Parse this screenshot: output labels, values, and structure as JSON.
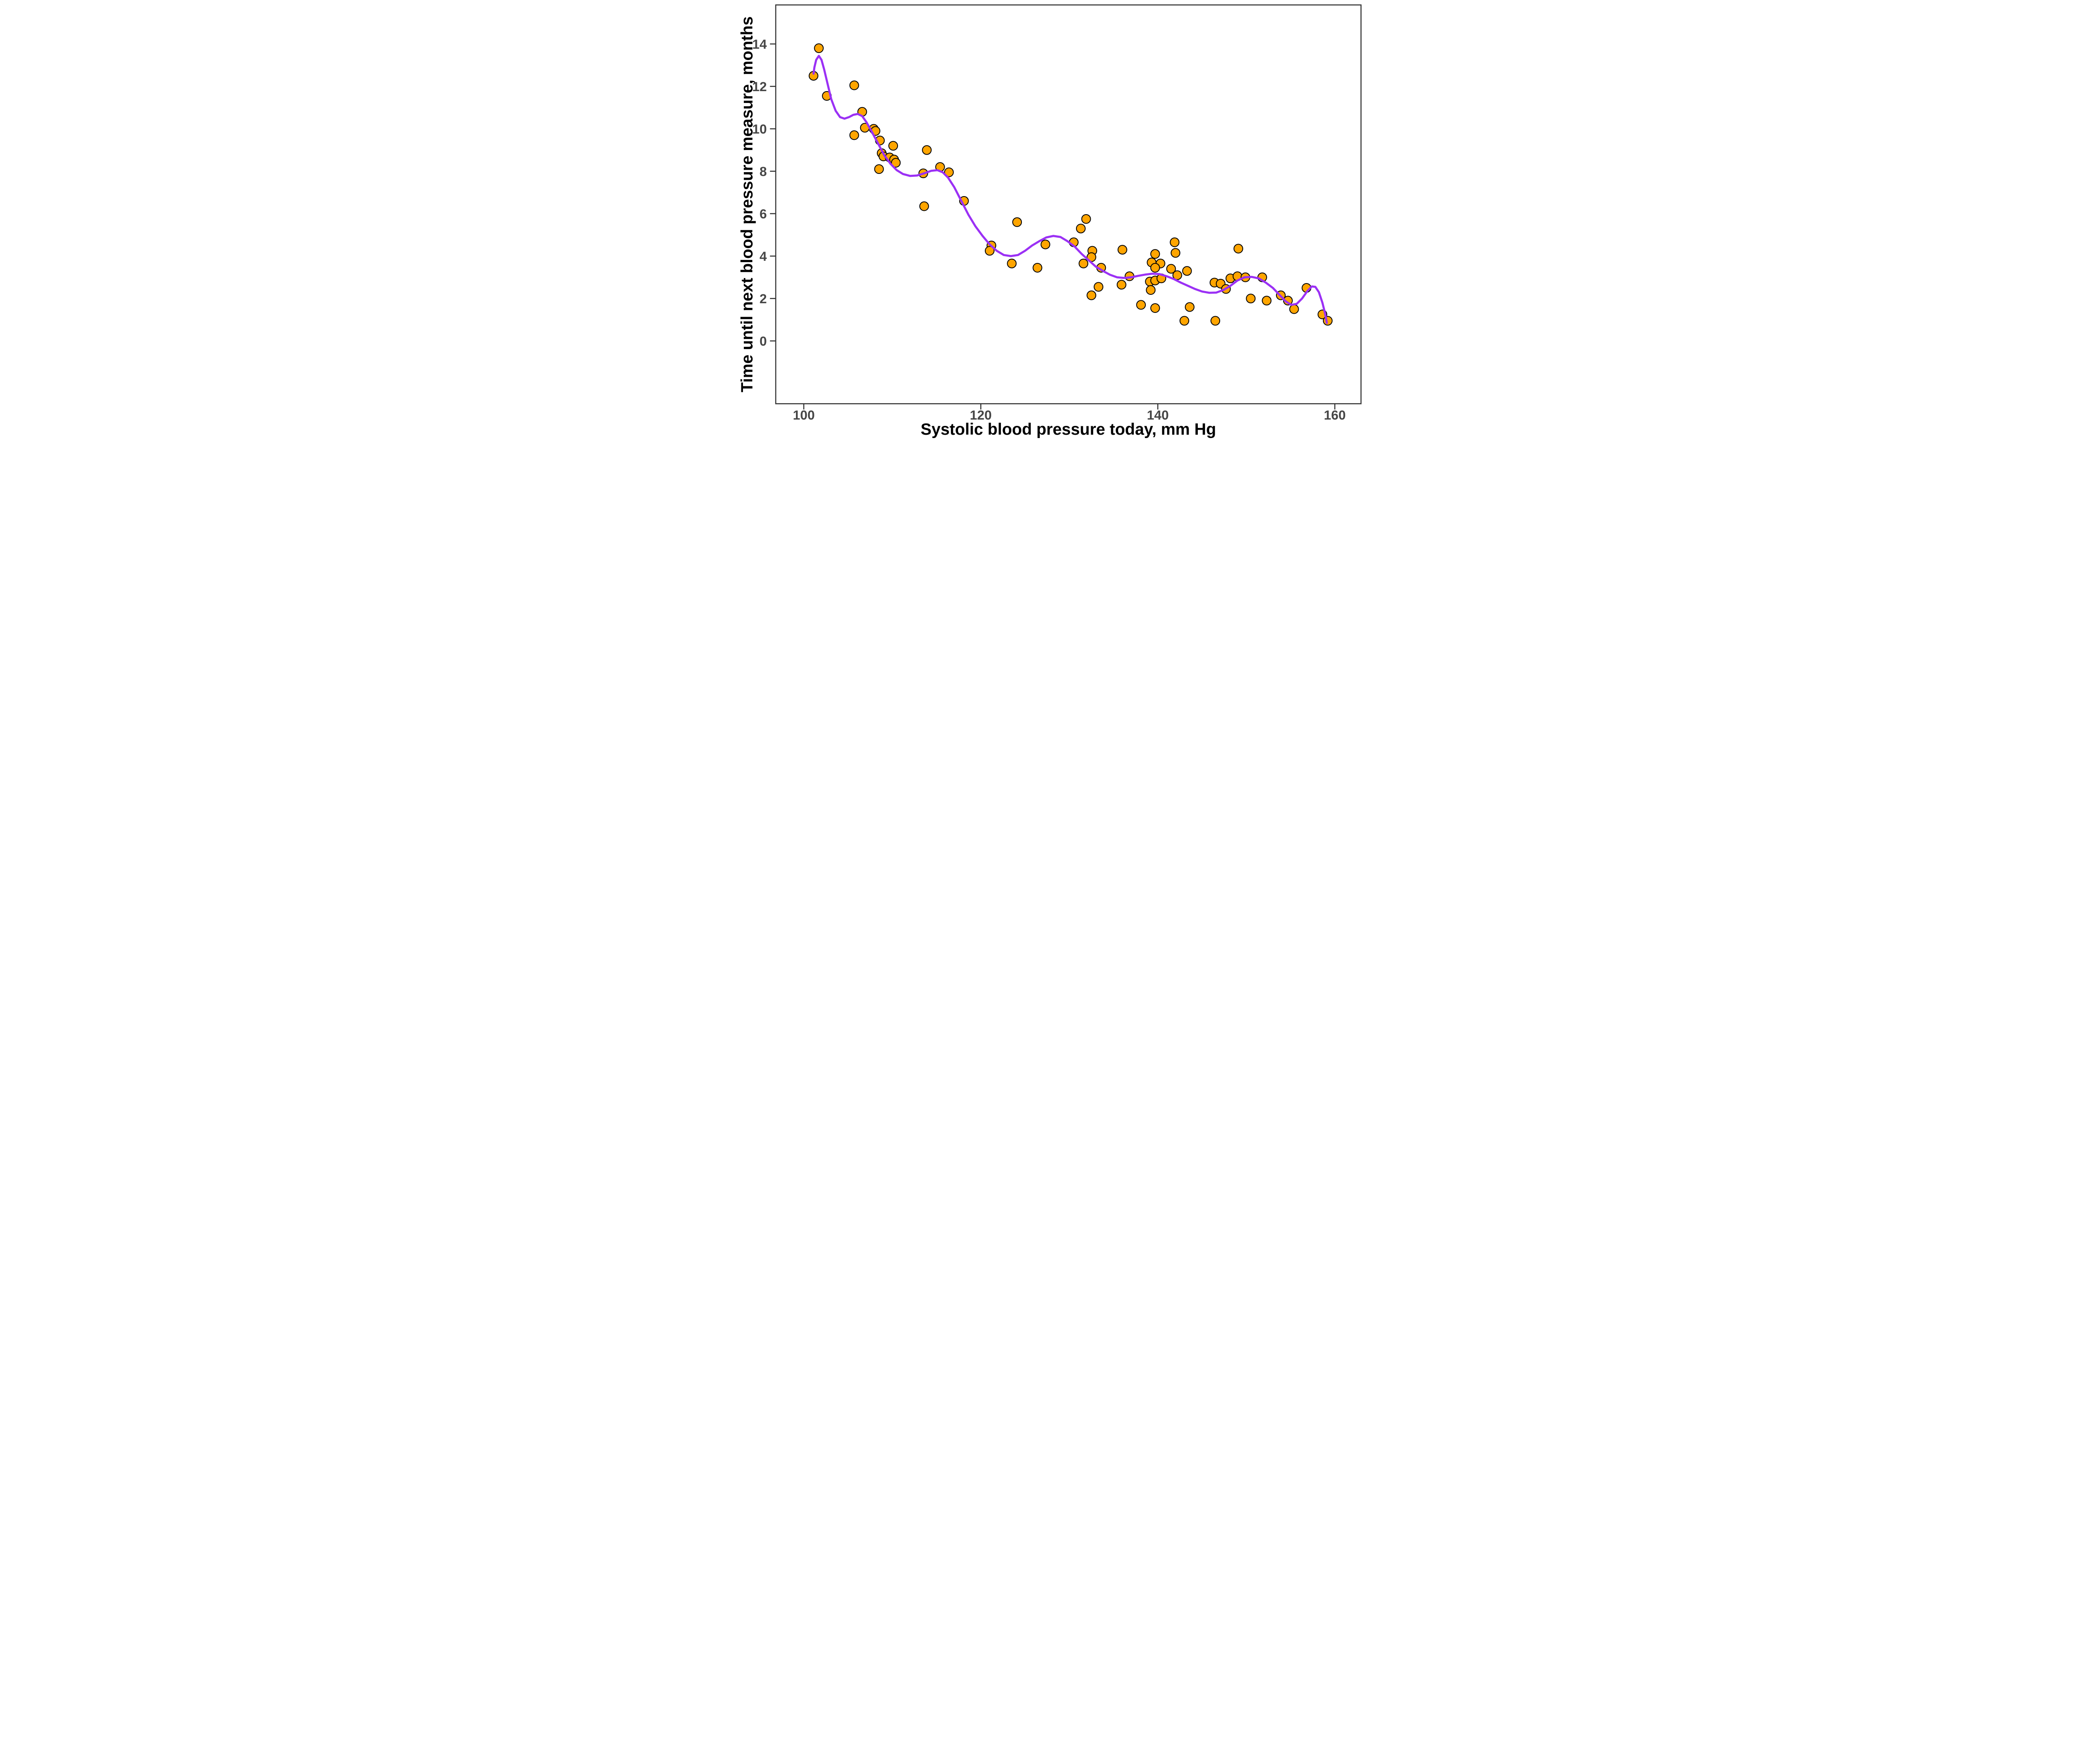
{
  "figure": {
    "x_axis_title": "Systolic blood pressure today, mm Hg",
    "y_axis_title": "Time until next blood pressure measure, months"
  },
  "chart_data": {
    "type": "scatter",
    "subtype": "scatter-with-loess-smooth",
    "title": "",
    "xlabel": "Systolic blood pressure today, mm Hg",
    "ylabel": "Time until next blood pressure measure, months",
    "xlim": [
      96.83,
      162.96
    ],
    "ylim": [
      -2.96,
      15.84
    ],
    "x_ticks": [
      100,
      120,
      140,
      160
    ],
    "x_tick_labels": [
      "100",
      "120",
      "140",
      "160"
    ],
    "y_ticks": [
      0,
      2,
      4,
      6,
      8,
      10,
      12,
      14
    ],
    "y_tick_labels": [
      "0",
      "2",
      "4",
      "6",
      "8",
      "10",
      "12",
      "14"
    ],
    "grid": false,
    "legend": "none",
    "colors": {
      "point_fill": "#FFA500",
      "point_stroke": "#000000",
      "smooth_line": "#9B30F5",
      "axis_line": "#333333",
      "tick_label": "#464646",
      "axis_title": "#000000",
      "background": "#FFFFFF"
    },
    "points": [
      [
        101.7,
        13.8
      ],
      [
        101.1,
        12.5
      ],
      [
        102.6,
        11.55
      ],
      [
        105.7,
        12.05
      ],
      [
        105.7,
        9.7
      ],
      [
        106.6,
        10.8
      ],
      [
        106.9,
        10.05
      ],
      [
        107.9,
        10.0
      ],
      [
        108.1,
        9.9
      ],
      [
        108.6,
        9.45
      ],
      [
        110.1,
        9.2
      ],
      [
        108.8,
        8.85
      ],
      [
        109.0,
        8.7
      ],
      [
        109.7,
        8.65
      ],
      [
        110.2,
        8.55
      ],
      [
        110.4,
        8.4
      ],
      [
        108.5,
        8.1
      ],
      [
        113.9,
        9.0
      ],
      [
        113.5,
        7.9
      ],
      [
        115.4,
        8.2
      ],
      [
        116.4,
        7.95
      ],
      [
        118.1,
        6.6
      ],
      [
        113.6,
        6.35
      ],
      [
        124.1,
        5.6
      ],
      [
        121.2,
        4.5
      ],
      [
        121.0,
        4.25
      ],
      [
        123.5,
        3.65
      ],
      [
        126.4,
        3.45
      ],
      [
        127.3,
        4.55
      ],
      [
        130.5,
        4.65
      ],
      [
        131.9,
        5.75
      ],
      [
        131.3,
        5.3
      ],
      [
        132.6,
        4.25
      ],
      [
        132.5,
        3.95
      ],
      [
        131.6,
        3.65
      ],
      [
        133.6,
        3.45
      ],
      [
        133.3,
        2.55
      ],
      [
        132.5,
        2.15
      ],
      [
        135.9,
        2.65
      ],
      [
        136.8,
        3.05
      ],
      [
        136.0,
        4.3
      ],
      [
        141.9,
        4.65
      ],
      [
        142.0,
        4.15
      ],
      [
        139.7,
        4.1
      ],
      [
        139.3,
        3.7
      ],
      [
        140.3,
        3.65
      ],
      [
        139.7,
        3.45
      ],
      [
        139.1,
        2.8
      ],
      [
        139.7,
        2.85
      ],
      [
        140.4,
        2.95
      ],
      [
        139.2,
        2.4
      ],
      [
        141.5,
        3.4
      ],
      [
        142.2,
        3.1
      ],
      [
        143.3,
        3.3
      ],
      [
        138.1,
        1.7
      ],
      [
        139.7,
        1.55
      ],
      [
        143.6,
        1.6
      ],
      [
        143.0,
        0.95
      ],
      [
        146.5,
        0.95
      ],
      [
        146.4,
        2.75
      ],
      [
        147.1,
        2.7
      ],
      [
        147.7,
        2.45
      ],
      [
        148.2,
        2.95
      ],
      [
        149.0,
        3.05
      ],
      [
        149.9,
        3.0
      ],
      [
        151.8,
        3.0
      ],
      [
        150.5,
        2.0
      ],
      [
        152.3,
        1.9
      ],
      [
        149.1,
        4.35
      ],
      [
        153.9,
        2.15
      ],
      [
        154.7,
        1.9
      ],
      [
        155.4,
        1.5
      ],
      [
        156.8,
        2.5
      ],
      [
        158.6,
        1.25
      ],
      [
        159.2,
        0.95
      ]
    ],
    "smooth_line": [
      [
        101.1,
        12.6
      ],
      [
        101.2,
        12.9
      ],
      [
        101.4,
        13.25
      ],
      [
        101.7,
        13.44
      ],
      [
        102.0,
        13.25
      ],
      [
        102.3,
        12.8
      ],
      [
        102.7,
        12.1
      ],
      [
        103.1,
        11.4
      ],
      [
        103.6,
        10.85
      ],
      [
        104.1,
        10.55
      ],
      [
        104.6,
        10.48
      ],
      [
        105.1,
        10.55
      ],
      [
        105.6,
        10.66
      ],
      [
        106.1,
        10.7
      ],
      [
        106.6,
        10.6
      ],
      [
        107.1,
        10.3
      ],
      [
        107.7,
        9.85
      ],
      [
        108.4,
        9.3
      ],
      [
        109.1,
        8.75
      ],
      [
        109.8,
        8.35
      ],
      [
        110.5,
        8.05
      ],
      [
        111.2,
        7.87
      ],
      [
        112.0,
        7.78
      ],
      [
        112.8,
        7.8
      ],
      [
        113.6,
        7.9
      ],
      [
        114.4,
        8.02
      ],
      [
        115.1,
        8.05
      ],
      [
        115.7,
        7.95
      ],
      [
        116.3,
        7.7
      ],
      [
        117.0,
        7.25
      ],
      [
        117.8,
        6.6
      ],
      [
        118.6,
        5.95
      ],
      [
        119.4,
        5.4
      ],
      [
        120.2,
        4.95
      ],
      [
        121.0,
        4.55
      ],
      [
        121.8,
        4.25
      ],
      [
        122.6,
        4.05
      ],
      [
        123.4,
        4.0
      ],
      [
        124.2,
        4.05
      ],
      [
        125.0,
        4.25
      ],
      [
        125.8,
        4.5
      ],
      [
        126.6,
        4.7
      ],
      [
        127.4,
        4.88
      ],
      [
        128.2,
        4.95
      ],
      [
        129.0,
        4.9
      ],
      [
        129.8,
        4.7
      ],
      [
        130.6,
        4.45
      ],
      [
        131.4,
        4.1
      ],
      [
        132.2,
        3.8
      ],
      [
        133.0,
        3.5
      ],
      [
        133.8,
        3.3
      ],
      [
        134.6,
        3.12
      ],
      [
        135.4,
        3.0
      ],
      [
        136.2,
        2.97
      ],
      [
        137.0,
        3.0
      ],
      [
        137.8,
        3.07
      ],
      [
        138.6,
        3.13
      ],
      [
        139.4,
        3.17
      ],
      [
        140.2,
        3.15
      ],
      [
        141.0,
        3.05
      ],
      [
        141.8,
        2.92
      ],
      [
        142.6,
        2.75
      ],
      [
        143.4,
        2.6
      ],
      [
        144.2,
        2.45
      ],
      [
        145.0,
        2.33
      ],
      [
        145.8,
        2.27
      ],
      [
        146.6,
        2.28
      ],
      [
        147.4,
        2.4
      ],
      [
        148.2,
        2.6
      ],
      [
        149.0,
        2.85
      ],
      [
        149.8,
        3.0
      ],
      [
        150.6,
        3.02
      ],
      [
        151.4,
        2.95
      ],
      [
        152.2,
        2.75
      ],
      [
        153.0,
        2.5
      ],
      [
        153.8,
        2.15
      ],
      [
        154.5,
        1.85
      ],
      [
        155.1,
        1.7
      ],
      [
        155.7,
        1.75
      ],
      [
        156.3,
        2.0
      ],
      [
        156.9,
        2.35
      ],
      [
        157.4,
        2.57
      ],
      [
        157.8,
        2.55
      ],
      [
        158.2,
        2.3
      ],
      [
        158.6,
        1.8
      ],
      [
        158.9,
        1.3
      ],
      [
        159.1,
        0.85
      ]
    ]
  }
}
